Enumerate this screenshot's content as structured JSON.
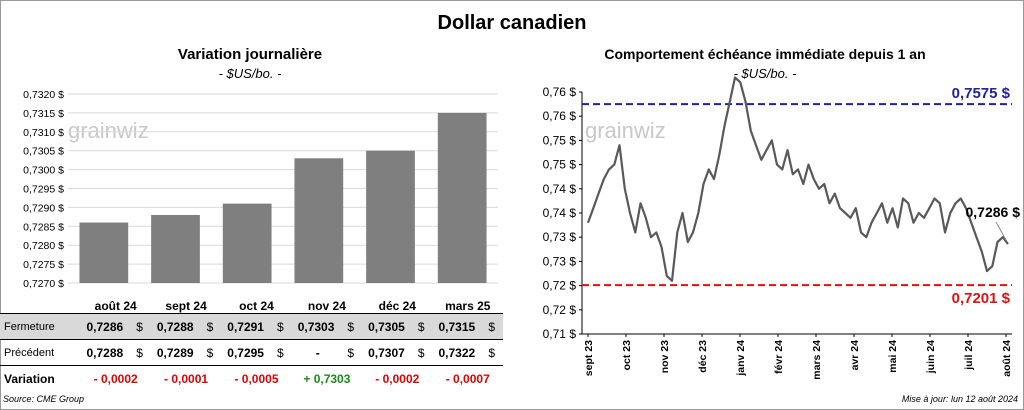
{
  "header": {
    "title": "Dollar canadien"
  },
  "left_panel": {
    "title": "Variation  journalière",
    "subtitle": "- $US/bo. -"
  },
  "right_panel": {
    "title": "Comportement échéance immédiate depuis 1 an",
    "subtitle": "- $US/bo. -"
  },
  "watermark": "grainwiz",
  "table": {
    "columns": [
      "août 24",
      "sept 24",
      "oct 24",
      "nov 24",
      "déc 24",
      "mars 25"
    ],
    "rows": [
      {
        "label": "Fermeture",
        "values": [
          "0,7286",
          "0,7288",
          "0,7291",
          "0,7303",
          "0,7305",
          "0,7315"
        ],
        "unit": "$"
      },
      {
        "label": "Précédent",
        "values": [
          "0,7288",
          "0,7289",
          "0,7295",
          "-",
          "0,7307",
          "0,7322"
        ],
        "unit": "$"
      },
      {
        "label": "Variation",
        "values": [
          "- 0,0002",
          "- 0,0001",
          "- 0,0005",
          "+ 0,7303",
          "- 0,0002",
          "- 0,0007"
        ]
      }
    ]
  },
  "footer": {
    "source": "Source: CME Group",
    "update": "Mise à jour: lun 12 août 2024"
  },
  "colors": {
    "bar": "#7f7f7f",
    "line": "#595959",
    "high": "#1f1fa8",
    "low": "#e01010",
    "neg": "#e00000",
    "pos": "#1a8a1a"
  },
  "chart_data": [
    {
      "type": "bar",
      "title": "Variation  journalière",
      "subtitle": "- $US/bo. -",
      "categories": [
        "août 24",
        "sept 24",
        "oct 24",
        "nov 24",
        "déc 24",
        "mars 25"
      ],
      "values": [
        0.7286,
        0.7288,
        0.7291,
        0.7303,
        0.7305,
        0.7315
      ],
      "ylim": [
        0.727,
        0.732
      ],
      "yticks": [
        "0,7270 $",
        "0,7275 $",
        "0,7280 $",
        "0,7285 $",
        "0,7290 $",
        "0,7295 $",
        "0,7300 $",
        "0,7305 $",
        "0,7310 $",
        "0,7315 $",
        "0,7320 $"
      ],
      "grid": true
    },
    {
      "type": "line",
      "title": "Comportement échéance immédiate depuis 1 an",
      "subtitle": "- $US/bo. -",
      "xticks": [
        "sept 23",
        "oct 23",
        "nov 23",
        "déc 23",
        "janv 24",
        "févr 24",
        "mars 24",
        "avr 24",
        "mai 24",
        "juin 24",
        "juil 24",
        "août 24"
      ],
      "ylim": [
        0.71,
        0.76
      ],
      "yticks": [
        "0,71 $",
        "0,72 $",
        "0,72 $",
        "0,73 $",
        "0,73 $",
        "0,74 $",
        "0,74 $",
        "0,75 $",
        "0,75 $",
        "0,76 $",
        "0,76 $"
      ],
      "series": [
        {
          "values": [
            0.733,
            0.736,
            0.739,
            0.742,
            0.744,
            0.745,
            0.749,
            0.74,
            0.735,
            0.731,
            0.737,
            0.734,
            0.73,
            0.731,
            0.728,
            0.722,
            0.721,
            0.731,
            0.735,
            0.729,
            0.731,
            0.735,
            0.741,
            0.744,
            0.742,
            0.747,
            0.753,
            0.758,
            0.763,
            0.762,
            0.758,
            0.752,
            0.749,
            0.746,
            0.748,
            0.75,
            0.745,
            0.744,
            0.748,
            0.743,
            0.744,
            0.741,
            0.745,
            0.742,
            0.74,
            0.741,
            0.737,
            0.739,
            0.736,
            0.735,
            0.734,
            0.736,
            0.731,
            0.73,
            0.733,
            0.735,
            0.737,
            0.733,
            0.736,
            0.732,
            0.738,
            0.737,
            0.733,
            0.735,
            0.734,
            0.736,
            0.738,
            0.737,
            0.731,
            0.735,
            0.737,
            0.738,
            0.736,
            0.733,
            0.73,
            0.727,
            0.723,
            0.724,
            0.729,
            0.73,
            0.7286
          ]
        }
      ],
      "reference_lines": [
        {
          "value": 0.7575,
          "label": "0,7575 $"
        },
        {
          "value": 0.7201,
          "label": "0,7201 $"
        }
      ],
      "last_value_label": "0,7286 $"
    }
  ]
}
